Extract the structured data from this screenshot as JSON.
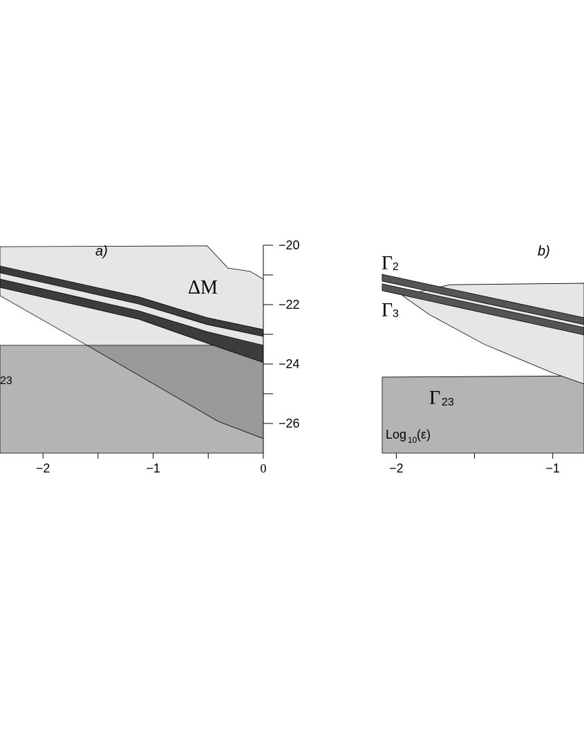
{
  "chart_data": [
    {
      "type": "area",
      "panel": "a)",
      "region_label": "ΔM",
      "gamma23": {
        "sub": "23"
      },
      "xlim": [
        -2.39,
        0
      ],
      "ylim": [
        -20,
        -27
      ],
      "xticks": [
        {
          "value": -2,
          "label": "−2"
        },
        {
          "value": -1,
          "label": "−1"
        },
        0
      ],
      "xminor": [
        -1.5,
        -0.5
      ],
      "y2ticks": [
        {
          "value": -20,
          "label": "−20"
        },
        {
          "value": -22,
          "label": "−22"
        },
        {
          "value": -24,
          "label": "−24"
        },
        {
          "value": -26,
          "label": "−26"
        }
      ],
      "y2minor": [
        -21,
        -23,
        -25
      ],
      "regions": [
        {
          "color": "#b4b4b4",
          "x": [
            -2.39,
            0,
            0,
            -2.39
          ],
          "y": [
            -23.37,
            -23.37,
            -27,
            -27
          ]
        },
        {
          "color": "#e6e6e6",
          "x": [
            -2.39,
            -0.51,
            -0.32,
            -0.12,
            0,
            0,
            -1.6,
            -2.39
          ],
          "y": [
            -20.05,
            -20.02,
            -20.77,
            -20.88,
            -21.14,
            -23.37,
            -23.37,
            -21.7
          ]
        },
        {
          "color": "#999999",
          "x": [
            -1.6,
            -0.41,
            0,
            0
          ],
          "y": [
            -23.37,
            -25.93,
            -26.51,
            -23.37
          ]
        },
        {
          "color": "#3c3c3c",
          "x": [
            -2.39,
            -1.13,
            -0.51,
            0,
            0,
            -0.51,
            -1.13,
            -2.39
          ],
          "y": [
            -20.7,
            -21.74,
            -22.44,
            -22.84,
            -23.07,
            -22.67,
            -21.98,
            -20.93
          ]
        },
        {
          "color": "#3c3c3c",
          "x": [
            -2.39,
            -1.13,
            -0.51,
            0,
            0,
            -0.51,
            -1.13,
            -2.39
          ],
          "y": [
            -21.14,
            -22.21,
            -22.91,
            -23.37,
            -23.95,
            -23.3,
            -22.49,
            -21.42
          ]
        }
      ]
    },
    {
      "type": "area",
      "panel": "b)",
      "gamma2": {
        "symbol": "Γ",
        "sub": "2"
      },
      "gamma3": {
        "symbol": "Γ",
        "sub": "3"
      },
      "gamma23": {
        "symbol": "Γ",
        "sub": "23"
      },
      "xlabel": {
        "main": "Log",
        "sub": "10",
        "tail": "(ε)"
      },
      "xlim": [
        -2.09,
        -0.8
      ],
      "ylim": [
        -20,
        -27
      ],
      "xticks": [
        {
          "value": -2,
          "label": "−2"
        },
        {
          "value": -1,
          "label": "−1"
        }
      ],
      "xminor": [
        -1.5
      ],
      "regions": [
        {
          "color": "#b4b4b4",
          "x": [
            -2.09,
            -0.8,
            -0.8,
            -2.09
          ],
          "y": [
            -24.44,
            -24.4,
            -27,
            -27
          ]
        },
        {
          "color": "#e6e6e6",
          "x": [
            -1.96,
            -1.66,
            -0.8,
            -0.8,
            -1,
            -1.44,
            -1.79
          ],
          "y": [
            -21.7,
            -21.33,
            -21.28,
            -24.67,
            -24.3,
            -23.33,
            -22.33
          ]
        },
        {
          "color": "#555555",
          "x": [
            -2.09,
            -0.8,
            -0.8,
            -2.09
          ],
          "y": [
            -20.98,
            -22.44,
            -22.67,
            -21.21
          ]
        },
        {
          "color": "#555555",
          "x": [
            -2.09,
            -0.8,
            -0.8,
            -2.09
          ],
          "y": [
            -21.3,
            -22.77,
            -23.02,
            -21.53
          ]
        }
      ]
    }
  ]
}
